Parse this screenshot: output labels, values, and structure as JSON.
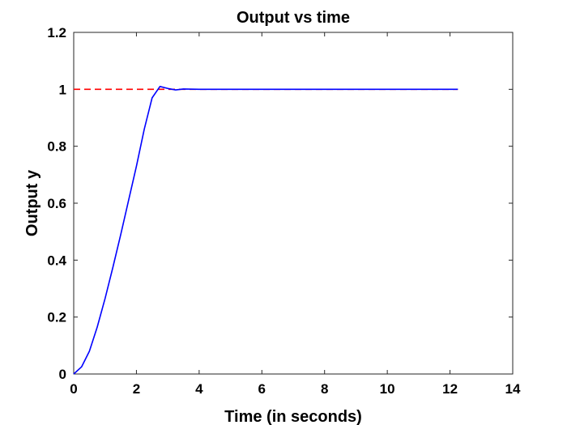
{
  "chart_data": {
    "type": "line",
    "title": "Output vs time",
    "xlabel": "Time (in seconds)",
    "ylabel": "Output y",
    "xlim": [
      0,
      14
    ],
    "ylim": [
      0,
      1.2
    ],
    "xticks": [
      "0",
      "2",
      "4",
      "6",
      "8",
      "10",
      "12",
      "14"
    ],
    "yticks": [
      "0",
      "0.2",
      "0.4",
      "0.6",
      "0.8",
      "1",
      "1.2"
    ],
    "grid": false,
    "legend": "none",
    "series": [
      {
        "style": "solid",
        "color": "#0000ff",
        "x": [
          0,
          0.25,
          0.5,
          0.75,
          1.0,
          1.25,
          1.5,
          1.75,
          2.0,
          2.25,
          2.5,
          2.75,
          3.0,
          3.25,
          3.5,
          4.0,
          5.0,
          6.0,
          7.0,
          8.0,
          9.0,
          10.0,
          11.0,
          12.25
        ],
        "y": [
          0,
          0.025,
          0.08,
          0.165,
          0.265,
          0.375,
          0.49,
          0.61,
          0.73,
          0.86,
          0.97,
          1.01,
          1.003,
          0.998,
          1.001,
          1.0,
          1.0,
          1.0,
          1.0,
          1.0,
          1.0,
          1.0,
          1.0,
          1.0
        ]
      },
      {
        "style": "dashed",
        "color": "#ff0000",
        "x": [
          0,
          12.25
        ],
        "y": [
          1,
          1
        ]
      }
    ]
  }
}
